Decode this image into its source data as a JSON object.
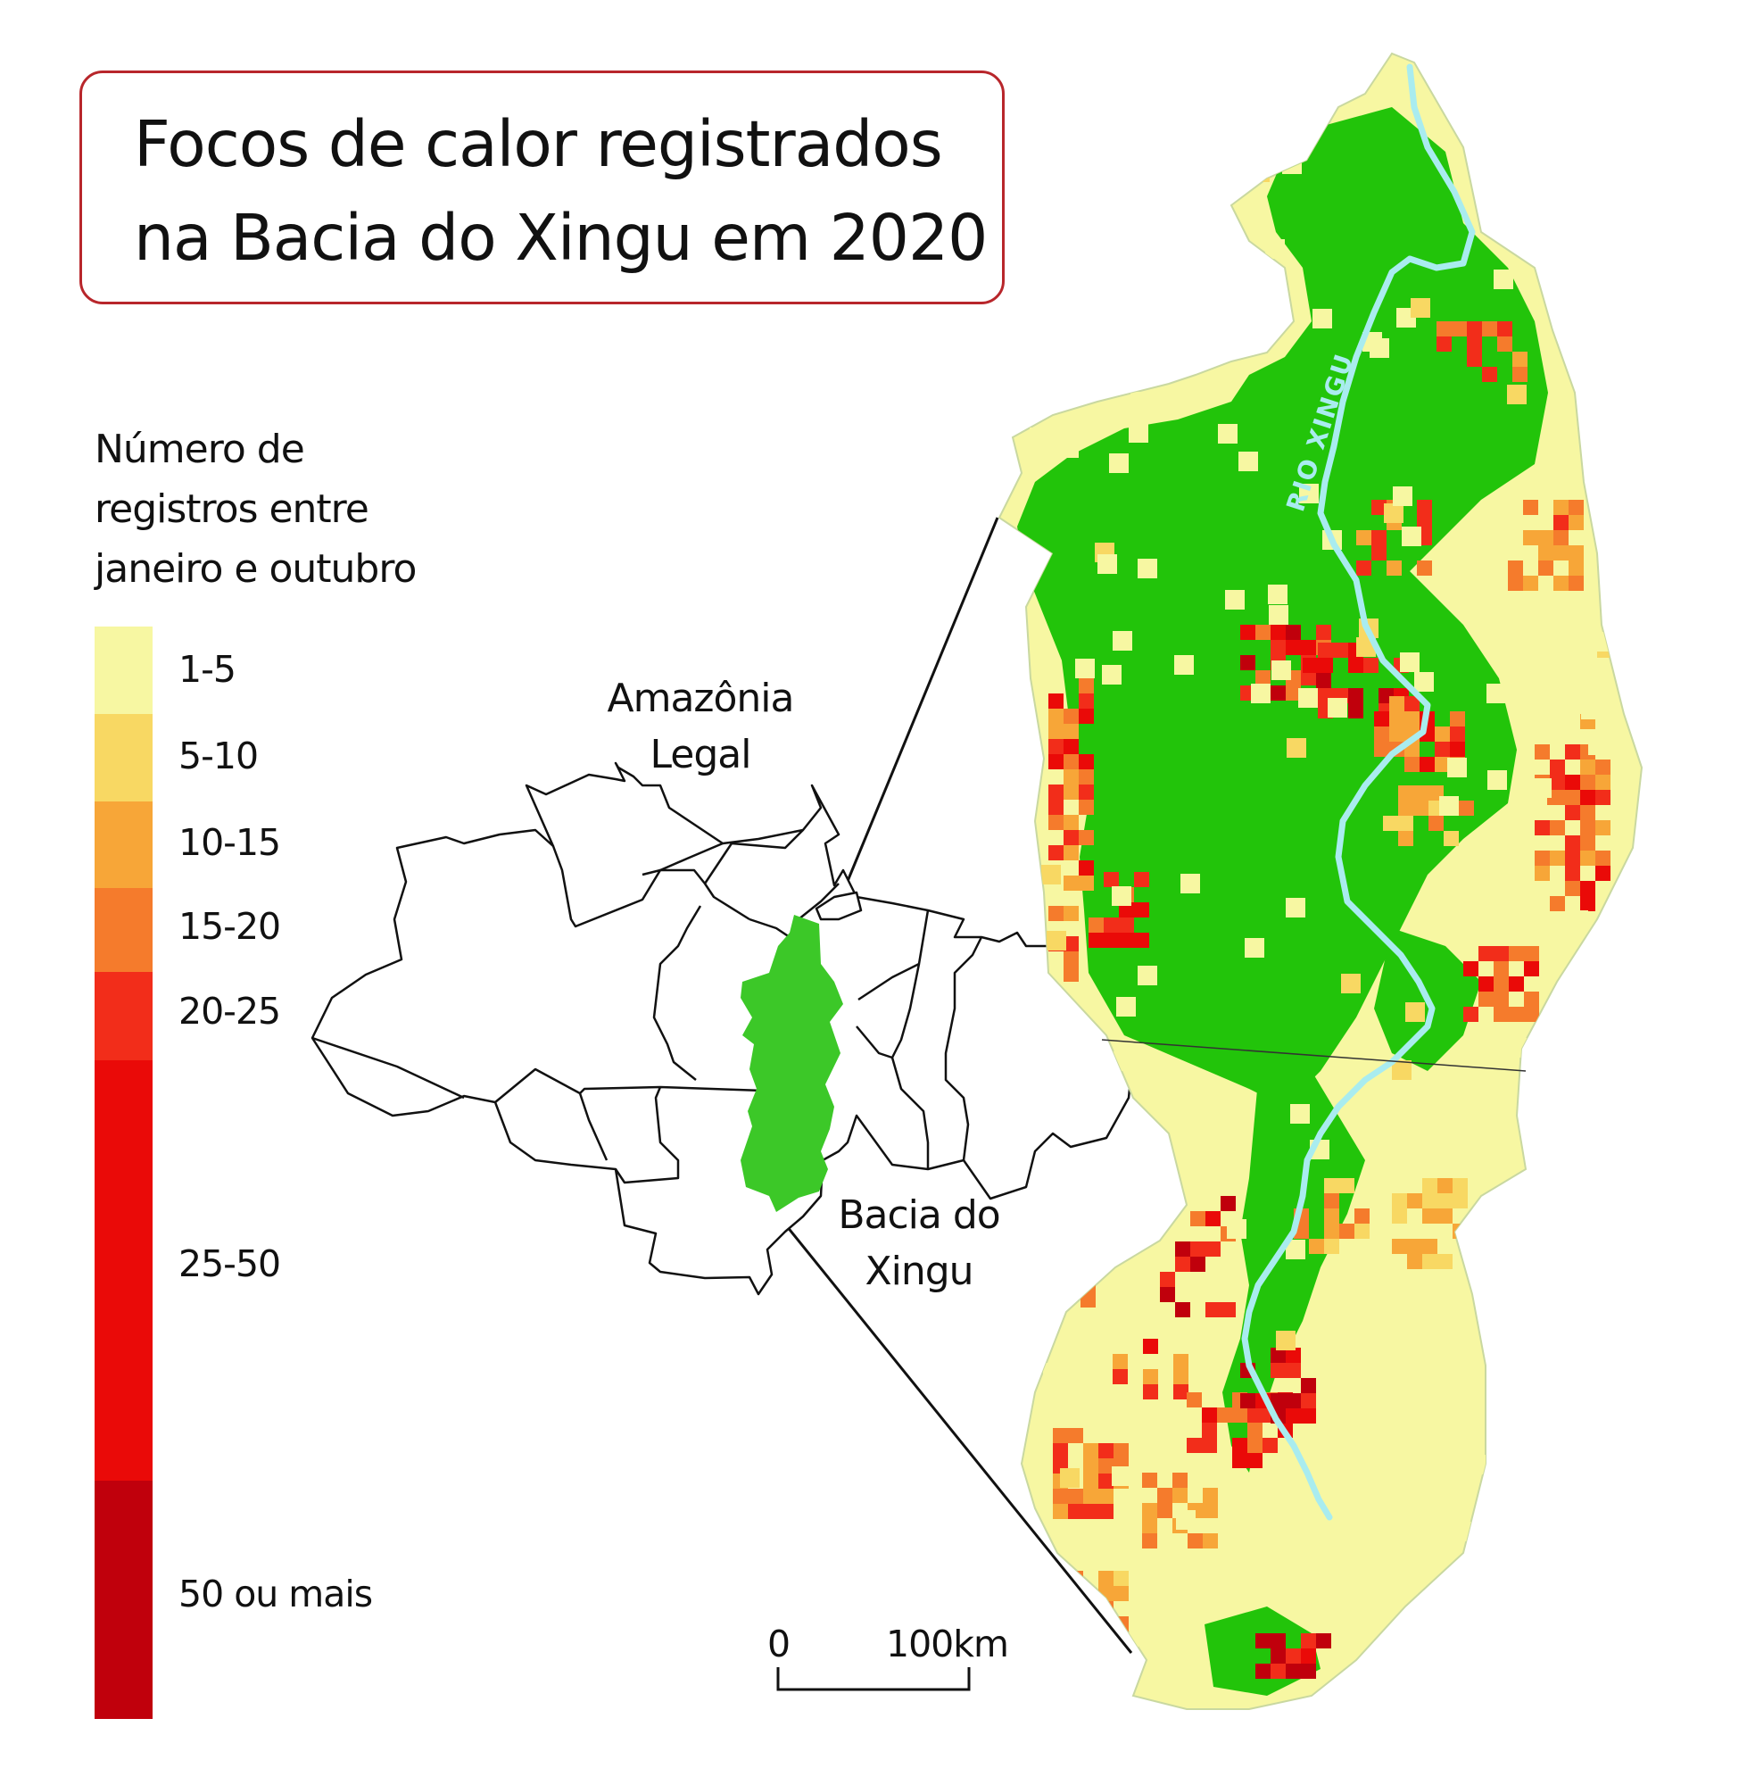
{
  "title": {
    "line1": "Focos de calor registrados",
    "line2": "na Bacia do Xingu em 2020"
  },
  "legend": {
    "heading": [
      "Número de",
      "registros entre",
      "janeiro e outubro"
    ],
    "classes": [
      {
        "label": "1-5",
        "color": "#f7f7a2"
      },
      {
        "label": "5-10",
        "color": "#f8d863"
      },
      {
        "label": "10-15",
        "color": "#f7a638"
      },
      {
        "label": "15-20",
        "color": "#f57b2c"
      },
      {
        "label": "20-25",
        "color": "#f22d1a"
      },
      {
        "label": "25-50",
        "color": "#ea0a08"
      },
      {
        "label": "50 ou mais",
        "color": "#c0000c"
      }
    ]
  },
  "locator_map": {
    "region_label": [
      "Amazônia",
      "Legal"
    ],
    "basin_label": [
      "Bacia do",
      "Xingu"
    ],
    "basin_color": "#3cc828"
  },
  "main_map": {
    "river_label": "RIO XINGU",
    "forest_color": "#22c40a",
    "river_color": "#a9ecef"
  },
  "scale_bar": {
    "zero_label": "0",
    "end_label": "100km"
  }
}
